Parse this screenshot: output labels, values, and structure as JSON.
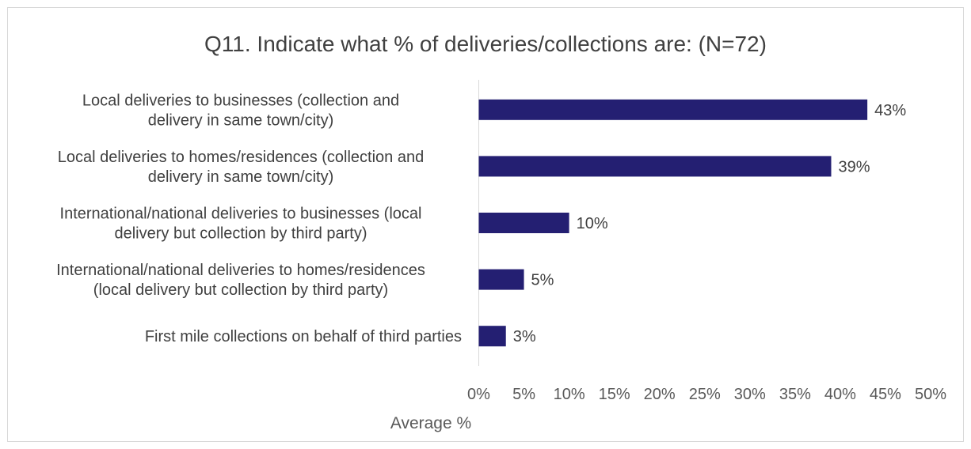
{
  "chart_data": {
    "type": "bar",
    "orientation": "horizontal",
    "title": "Q11. Indicate what % of deliveries/collections are: (N=72)",
    "xlabel": "Average %",
    "ylabel": "",
    "categories": [
      [
        "Local deliveries to businesses (collection and",
        "delivery in same town/city)"
      ],
      [
        "Local deliveries to homes/residences (collection and",
        "delivery in same town/city)"
      ],
      [
        "International/national deliveries to businesses (local",
        "delivery but collection by third party)"
      ],
      [
        "International/national deliveries to homes/residences",
        "(local delivery but collection by third party)"
      ],
      [
        "First mile collections on behalf of third parties"
      ]
    ],
    "values": [
      43,
      39,
      10,
      5,
      3
    ],
    "value_labels": [
      "43%",
      "39%",
      "10%",
      "5%",
      "3%"
    ],
    "xlim": [
      0,
      50
    ],
    "x_ticks": [
      "0%",
      "5%",
      "10%",
      "15%",
      "20%",
      "25%",
      "30%",
      "35%",
      "40%",
      "45%",
      "50%"
    ],
    "bar_color": "#241f72",
    "grid": false,
    "legend": "none"
  }
}
